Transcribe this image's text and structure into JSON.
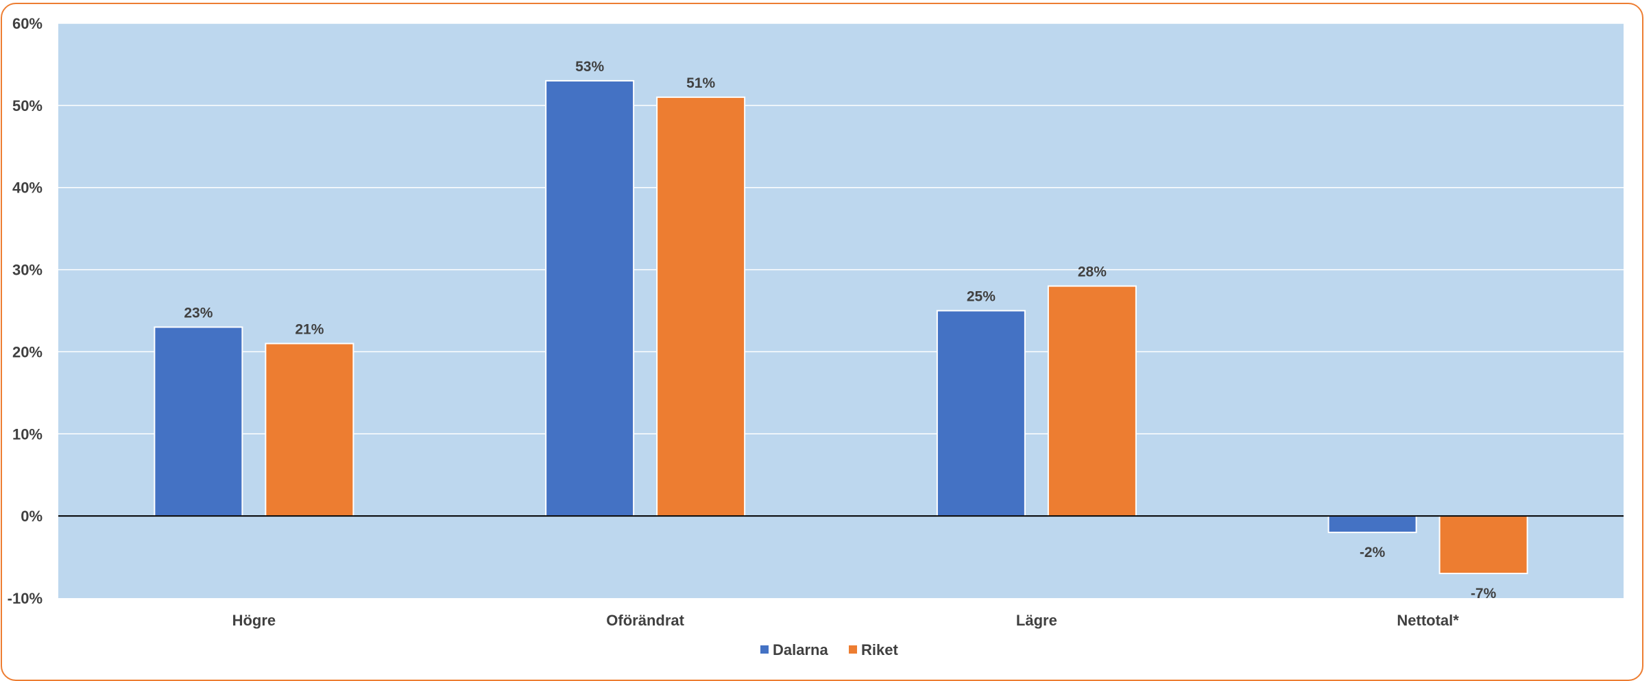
{
  "chart_data": {
    "type": "bar",
    "categories": [
      "Högre",
      "Oförändrat",
      "Lägre",
      "Nettotal*"
    ],
    "series": [
      {
        "name": "Dalarna",
        "color": "#4472C4",
        "values": [
          23,
          53,
          25,
          -2
        ],
        "labels": [
          "23%",
          "53%",
          "25%",
          "-2%"
        ]
      },
      {
        "name": "Riket",
        "color": "#ED7D31",
        "values": [
          21,
          51,
          28,
          -7
        ],
        "labels": [
          "21%",
          "51%",
          "28%",
          "-7%"
        ]
      }
    ],
    "ylim": [
      -10,
      60
    ],
    "yticks": [
      -10,
      0,
      10,
      20,
      30,
      40,
      50,
      60
    ],
    "ytick_labels": [
      "-10%",
      "0%",
      "10%",
      "20%",
      "30%",
      "40%",
      "50%",
      "60%"
    ],
    "title": "",
    "xlabel": "",
    "ylabel": "",
    "grid": true,
    "legend": "bottom-center",
    "plot_background": "#BDD7EE",
    "frame_color": "#ED7D31"
  }
}
